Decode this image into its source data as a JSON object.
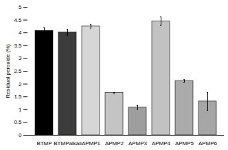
{
  "chart_data": {
    "type": "bar",
    "categories": [
      "BTMP",
      "BTMPalkali",
      "APMP1",
      "APMP2",
      "APMP3",
      "APMP4",
      "APMP5",
      "APMP6"
    ],
    "values": [
      4.08,
      4.02,
      4.25,
      1.65,
      1.08,
      4.45,
      2.12,
      1.32
    ],
    "errors": [
      0.12,
      0.12,
      0.07,
      0.02,
      0.08,
      0.17,
      0.05,
      0.35
    ],
    "colors": [
      "#000000",
      "#3c3c3c",
      "#d6d6d6",
      "#c4c4c4",
      "#9e9e9e",
      "#c2c2c2",
      "#ababab",
      "#a6a6a6"
    ],
    "y_label": "Residual peroxide (%)",
    "ylim": [
      0,
      5
    ],
    "yticks": [
      0,
      0.5,
      1,
      1.5,
      2,
      2.5,
      3,
      3.5,
      4,
      4.5,
      5
    ],
    "grid": false
  }
}
